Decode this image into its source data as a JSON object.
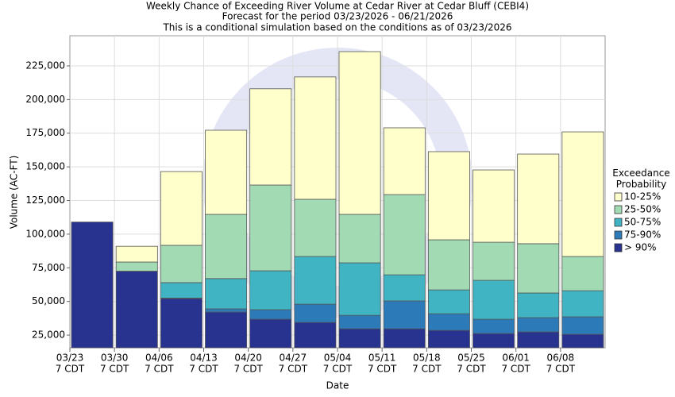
{
  "chart_data": {
    "type": "range_bar",
    "title": "Weekly Chance of Exceeding River Volume at Cedar River at Cedar Bluff (CEBI4)",
    "subtitle": "Forecast for the period 03/23/2026 - 06/21/2026",
    "note": "This is a conditional simulation based on the conditions as of 03/23/2026",
    "x_label": "Date",
    "y_label": "Volume (AC-FT)",
    "legend_title": "Exceedance Probability",
    "categories": [
      "03/23",
      "03/30",
      "04/06",
      "04/13",
      "04/20",
      "04/27",
      "05/04",
      "05/11",
      "05/18",
      "05/25",
      "06/01",
      "06/08"
    ],
    "category_times": [
      "7 CDT",
      "7 CDT",
      "7 CDT",
      "7 CDT",
      "7 CDT",
      "7 CDT",
      "7 CDT",
      "7 CDT",
      "7 CDT",
      "7 CDT",
      "7 CDT",
      "7 CDT"
    ],
    "series": [
      {
        "name": "> 90%",
        "color": "#27338f",
        "values": [
          109000,
          72500,
          52100,
          42100,
          36800,
          34400,
          29700,
          29700,
          28500,
          26200,
          27400,
          25600
        ]
      },
      {
        "name": "75-90%",
        "color": "#2c7bb8",
        "values": [
          109000,
          72500,
          52500,
          44500,
          43900,
          48000,
          39700,
          50400,
          40900,
          36800,
          38000,
          38600
        ]
      },
      {
        "name": "50-75%",
        "color": "#41b4c4",
        "values": [
          109000,
          72500,
          64000,
          67000,
          72800,
          83400,
          78700,
          69800,
          58600,
          65700,
          56300,
          58000
        ]
      },
      {
        "name": "25-50%",
        "color": "#a2dab4",
        "values": [
          109000,
          79300,
          91700,
          114700,
          136500,
          125900,
          114700,
          129400,
          95800,
          94000,
          92900,
          83400
        ]
      },
      {
        "name": "10-25%",
        "color": "#ffffcc",
        "values": [
          109000,
          91000,
          146500,
          177200,
          208000,
          216800,
          235600,
          179000,
          161300,
          147700,
          159500,
          176000
        ]
      }
    ],
    "ylim": [
      15600,
      247400
    ],
    "yticks": [
      {
        "value": 25000,
        "label": "25,000"
      },
      {
        "value": 50000,
        "label": "50,000"
      },
      {
        "value": 75000,
        "label": "75,000"
      },
      {
        "value": 100000,
        "label": "100,000"
      },
      {
        "value": 125000,
        "label": "125,000"
      },
      {
        "value": 150000,
        "label": "150,000"
      },
      {
        "value": 175000,
        "label": "175,000"
      },
      {
        "value": 200000,
        "label": "200,000"
      },
      {
        "value": 225000,
        "label": "225,000"
      }
    ],
    "grid": true
  }
}
